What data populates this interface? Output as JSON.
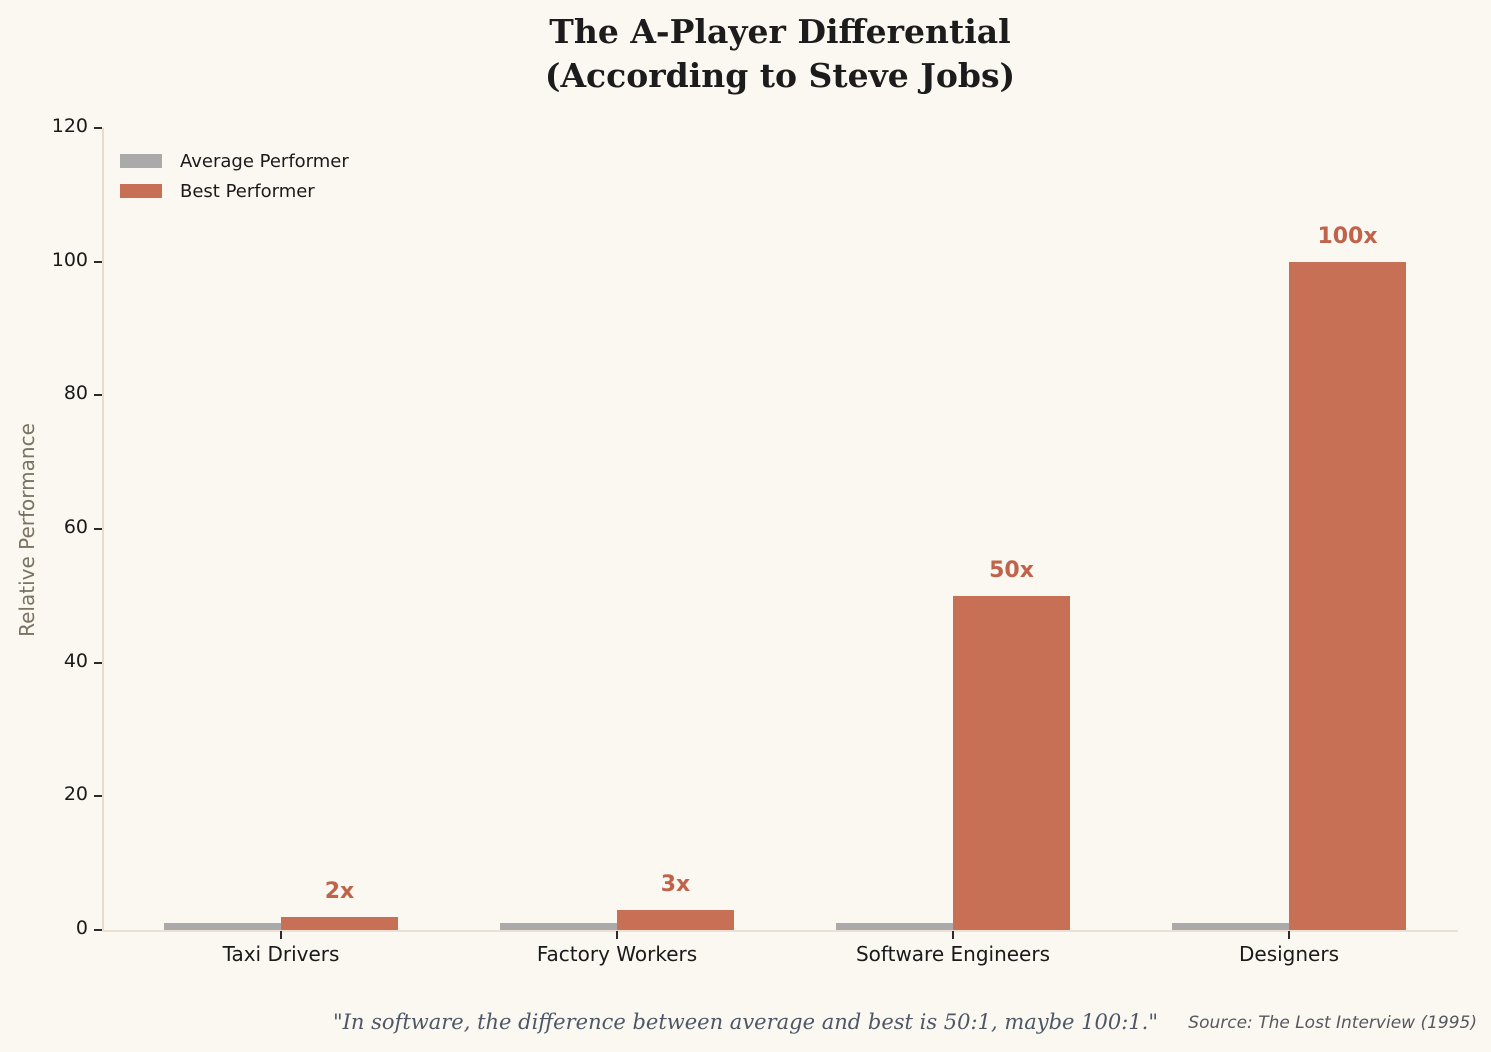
{
  "title": {
    "line1": "The A-Player Differential",
    "line2": "(According to Steve Jobs)"
  },
  "chart_data": {
    "type": "bar",
    "categories": [
      "Taxi Drivers",
      "Factory Workers",
      "Software Engineers",
      "Designers"
    ],
    "series": [
      {
        "name": "Average Performer",
        "values": [
          1,
          1,
          1,
          1
        ],
        "color": "#aaaaaa"
      },
      {
        "name": "Best Performer",
        "values": [
          2,
          3,
          50,
          100
        ],
        "color": "#c77056"
      }
    ],
    "bar_labels": [
      "2x",
      "3x",
      "50x",
      "100x"
    ],
    "bar_label_color": "#c0634a",
    "title": "The A-Player Differential (According to Steve Jobs)",
    "xlabel": "",
    "ylabel": "Relative Performance",
    "yticks": [
      0,
      20,
      40,
      60,
      80,
      100,
      120
    ],
    "ylim": [
      0,
      120
    ],
    "grid": false,
    "legend_position": "upper left"
  },
  "footer": {
    "quote": "\"In software, the difference between average and best is 50:1, maybe 100:1.\"",
    "source": "Source: The Lost Interview (1995)"
  },
  "colors": {
    "background": "#fbf8f1",
    "average_bar": "#aaaaaa",
    "best_bar": "#c77056",
    "bar_label": "#c0634a",
    "quote_text": "#4d5766",
    "source_text": "#55595f"
  }
}
